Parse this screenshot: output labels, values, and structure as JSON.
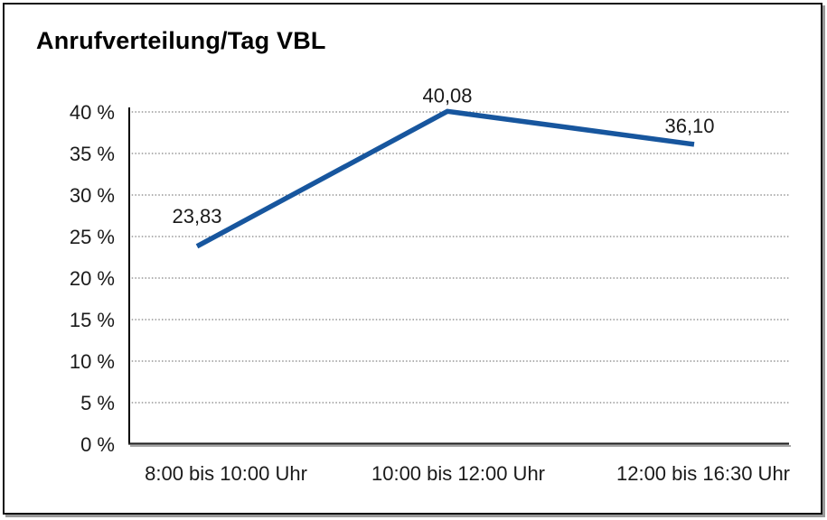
{
  "window": {
    "background": "#ffffff",
    "frame_border_color": "#111111",
    "frame_shadow_color": "#999999"
  },
  "chart_data": {
    "type": "line",
    "title": "Anrufverteilung/Tag VBL",
    "categories": [
      "8:00 bis 10:00 Uhr",
      "10:00 bis 12:00 Uhr",
      "12:00 bis 16:30 Uhr"
    ],
    "values": [
      23.83,
      40.08,
      36.1
    ],
    "value_labels": [
      "23,83",
      "40,08",
      "36,10"
    ],
    "y_tick_labels": [
      "0 %",
      "5 %",
      "10 %",
      "15 %",
      "20 %",
      "25 %",
      "30 %",
      "35 %",
      "40 %"
    ],
    "ylim": [
      0,
      40
    ],
    "y_step": 5,
    "xlabel": "",
    "ylabel": "",
    "legend": "none",
    "grid": "horizontal-dotted",
    "colors": {
      "line": "#17569E",
      "gridline": "#808080",
      "axis": "#000000",
      "baseline_dark": "#222222",
      "baseline_shadow": "#999999",
      "text": "#1a1a1a"
    }
  }
}
